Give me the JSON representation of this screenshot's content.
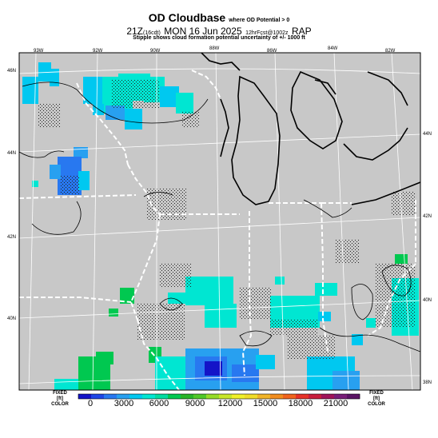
{
  "header": {
    "title": "OD Cloudbase",
    "title_note": "where OD Potential > 0",
    "time_main": "21Z",
    "time_cdt": "(16cdt)",
    "date": "MON 16 Jun 2025",
    "model_info": "12hrFcst@1002z",
    "model": "RAP",
    "stipple_note": "Stipple shows cloud formation potential uncertainty of +/- 1000 ft"
  },
  "map": {
    "land_color": "#c8c8c8",
    "state_border_color": "#ffffff",
    "coast_color": "#000000",
    "contour_color": "#000000",
    "lon_labels": [
      "93W",
      "92W",
      "90W",
      "88W",
      "86W",
      "84W",
      "82W"
    ],
    "lat_labels_left": [
      "46N",
      "44N",
      "42N",
      "40N"
    ],
    "lat_labels_right": [
      "44N",
      "42N",
      "40N",
      "38N"
    ]
  },
  "colorbar": {
    "colors": [
      "#1414c8",
      "#1e46e6",
      "#2878f0",
      "#28a0f0",
      "#00c8f0",
      "#00e6d2",
      "#00dca0",
      "#00c850",
      "#28b428",
      "#50c828",
      "#96dc28",
      "#c8e628",
      "#f0f028",
      "#f0dc28",
      "#f0b428",
      "#f08c1e",
      "#f0641e",
      "#e63228",
      "#c81e3c",
      "#a0145a",
      "#781e78",
      "#5a1464"
    ],
    "tick_labels": [
      "0",
      "3000",
      "6000",
      "9000",
      "12000",
      "15000",
      "18000",
      "21000"
    ],
    "left_label_lines": [
      "FIXED",
      "[ft]",
      "COLOR"
    ],
    "right_label_lines": [
      "FIXED",
      "[ft]",
      "COLOR"
    ]
  }
}
